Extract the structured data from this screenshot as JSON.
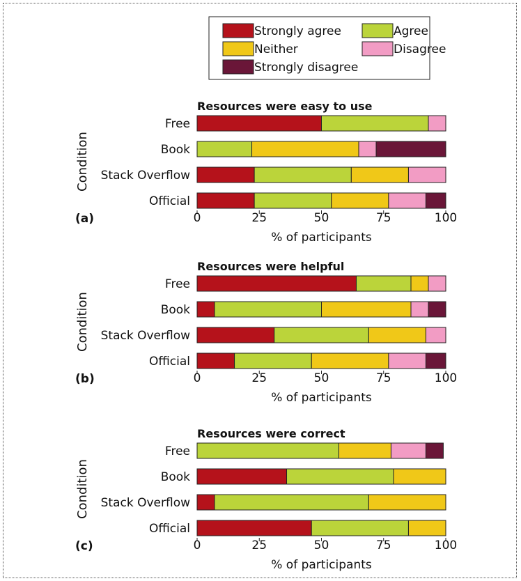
{
  "legend": {
    "position": "top-center",
    "items": [
      {
        "label": "Strongly agree",
        "color": "#b5121b"
      },
      {
        "label": "Agree",
        "color": "#bbd43a"
      },
      {
        "label": "Neither",
        "color": "#f0c818"
      },
      {
        "label": "Disagree",
        "color": "#f29cc4"
      },
      {
        "label": "Strongly disagree",
        "color": "#6a1638"
      }
    ]
  },
  "chart_data": [
    {
      "type": "bar",
      "orientation": "horizontal",
      "stacked": true,
      "panel_label": "(a)",
      "title": "Resources were easy to use",
      "ylabel": "Condition",
      "xlabel": "% of participants",
      "xlim": [
        0,
        100
      ],
      "xticks": [
        0,
        25,
        50,
        75,
        100
      ],
      "categories": [
        "Free",
        "Book",
        "Stack Overflow",
        "Official"
      ],
      "series": [
        {
          "name": "Strongly agree",
          "values": [
            50,
            0,
            23,
            23
          ]
        },
        {
          "name": "Agree",
          "values": [
            43,
            22,
            39,
            31
          ]
        },
        {
          "name": "Neither",
          "values": [
            0,
            43,
            23,
            23
          ]
        },
        {
          "name": "Disagree",
          "values": [
            7,
            7,
            15,
            15
          ]
        },
        {
          "name": "Strongly disagree",
          "values": [
            0,
            28,
            0,
            8
          ]
        }
      ]
    },
    {
      "type": "bar",
      "orientation": "horizontal",
      "stacked": true,
      "panel_label": "(b)",
      "title": "Resources were helpful",
      "ylabel": "Condition",
      "xlabel": "% of participants",
      "xlim": [
        0,
        100
      ],
      "xticks": [
        0,
        25,
        50,
        75,
        100
      ],
      "categories": [
        "Free",
        "Book",
        "Stack Overflow",
        "Official"
      ],
      "series": [
        {
          "name": "Strongly agree",
          "values": [
            64,
            7,
            31,
            15
          ]
        },
        {
          "name": "Agree",
          "values": [
            22,
            43,
            38,
            31
          ]
        },
        {
          "name": "Neither",
          "values": [
            7,
            36,
            23,
            31
          ]
        },
        {
          "name": "Disagree",
          "values": [
            7,
            7,
            8,
            15
          ]
        },
        {
          "name": "Strongly disagree",
          "values": [
            0,
            7,
            0,
            8
          ]
        }
      ]
    },
    {
      "type": "bar",
      "orientation": "horizontal",
      "stacked": true,
      "panel_label": "(c)",
      "title": "Resources were correct",
      "ylabel": "Condition",
      "xlabel": "% of participants",
      "xlim": [
        0,
        100
      ],
      "xticks": [
        0,
        25,
        50,
        75,
        100
      ],
      "categories": [
        "Free",
        "Book",
        "Stack Overflow",
        "Official"
      ],
      "series": [
        {
          "name": "Strongly agree",
          "values": [
            0,
            36,
            7,
            46
          ]
        },
        {
          "name": "Agree",
          "values": [
            57,
            43,
            62,
            39
          ]
        },
        {
          "name": "Neither",
          "values": [
            21,
            21,
            31,
            15
          ]
        },
        {
          "name": "Disagree",
          "values": [
            14,
            0,
            0,
            0
          ]
        },
        {
          "name": "Strongly disagree",
          "values": [
            7,
            0,
            0,
            0
          ]
        }
      ]
    }
  ]
}
